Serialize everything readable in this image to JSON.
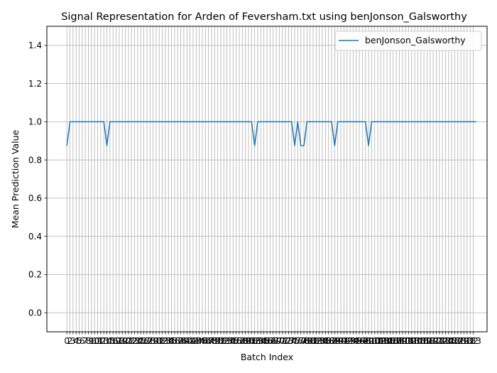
{
  "chart_data": {
    "type": "line",
    "title": "Signal Representation for Arden of Feversham.txt using benJonson_Galsworthy",
    "xlabel": "Batch Index",
    "ylabel": "Mean Prediction Value",
    "xlim": [
      -6.5,
      136.5
    ],
    "ylim": [
      -0.1,
      1.5
    ],
    "yticks": [
      0.0,
      0.2,
      0.4,
      0.6,
      0.8,
      1.0,
      1.2,
      1.4
    ],
    "ytick_labels": [
      "0.0",
      "0.2",
      "0.4",
      "0.6",
      "0.8",
      "1.0",
      "1.2",
      "1.4"
    ],
    "x_tick_step": 1,
    "x_tick_labels": [
      "0",
      "2",
      "3",
      "4",
      "5",
      "6",
      "7",
      "8",
      "9",
      "10",
      "11",
      "12",
      "13",
      "14",
      "15",
      "16",
      "17",
      "18",
      "19",
      "20",
      "21",
      "22",
      "23",
      "24",
      "25",
      "26",
      "27",
      "28",
      "29",
      "30",
      "31",
      "32",
      "33",
      "34",
      "35",
      "36",
      "37",
      "38",
      "39",
      "40",
      "41",
      "42",
      "43",
      "44",
      "45",
      "46",
      "47",
      "48",
      "49",
      "50",
      "51",
      "52",
      "53",
      "54",
      "55",
      "56",
      "57",
      "58",
      "59",
      "60",
      "61",
      "62",
      "63",
      "64",
      "65",
      "66",
      "67",
      "68",
      "69",
      "70",
      "71",
      "72",
      "73",
      "74",
      "75",
      "76",
      "77",
      "78",
      "79",
      "80",
      "81",
      "82",
      "83",
      "84",
      "85",
      "86",
      "87",
      "88",
      "89",
      "90",
      "91",
      "92",
      "93",
      "94",
      "95",
      "96",
      "97",
      "98",
      "99",
      "100",
      "101",
      "102",
      "103",
      "104",
      "105",
      "106",
      "107",
      "108",
      "109",
      "110",
      "111",
      "112",
      "113",
      "114",
      "115",
      "116",
      "117",
      "118",
      "119",
      "120",
      "121",
      "122",
      "123",
      "124",
      "125",
      "126",
      "127",
      "128",
      "129",
      "130",
      "131",
      "132",
      "133"
    ],
    "grid": true,
    "legend_position": "top-right",
    "series": [
      {
        "name": "benJonson_Galsworthy",
        "color": "#1f77b4",
        "x": [
          0,
          1,
          2,
          12,
          13,
          14,
          60,
          61,
          62,
          73,
          74,
          75,
          76,
          77,
          78,
          86,
          87,
          88,
          97,
          98,
          99,
          133
        ],
        "y": [
          0.875,
          1.0,
          1.0,
          1.0,
          0.875,
          1.0,
          1.0,
          0.875,
          1.0,
          1.0,
          0.875,
          1.0,
          0.875,
          0.875,
          1.0,
          1.0,
          0.875,
          1.0,
          1.0,
          0.875,
          1.0,
          1.0
        ]
      }
    ]
  }
}
